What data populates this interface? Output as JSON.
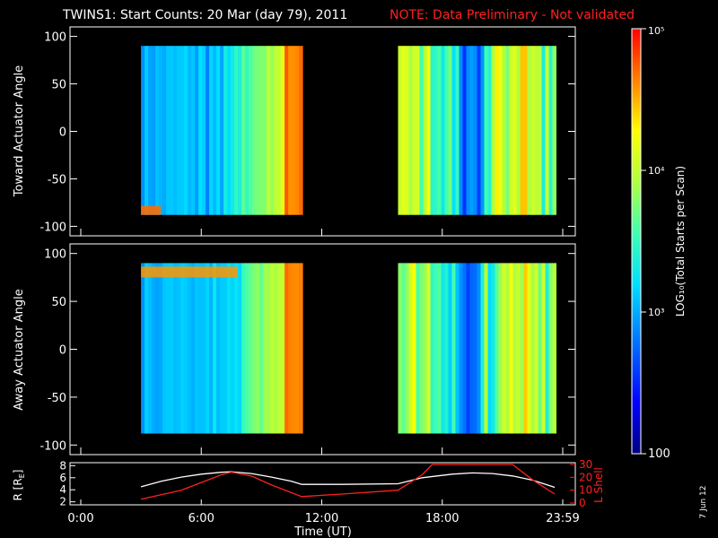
{
  "header": {
    "title": "TWINS1: Start Counts: 20 Mar (day  79), 2011",
    "note": "NOTE: Data Preliminary - Not validated",
    "note_color": "#ff2020"
  },
  "footer": {
    "date_stamp": "7 Jun 12"
  },
  "chart_data": [
    {
      "type": "heatmap",
      "ylabel": "Toward Actuator Angle",
      "ylim": [
        -110,
        110
      ],
      "yticks": [
        "100",
        "50",
        "0",
        "-50",
        "-100"
      ],
      "xlim": [
        0,
        24
      ],
      "x_data_ranges_hours": [
        [
          3.0,
          11.0
        ],
        [
          15.8,
          23.6
        ]
      ],
      "y_data_range_deg": [
        -88,
        90
      ],
      "color_scale": "log",
      "zlim": [
        100,
        100000
      ]
    },
    {
      "type": "heatmap",
      "ylabel": "Away Actuator Angle",
      "ylim": [
        -110,
        110
      ],
      "yticks": [
        "100",
        "50",
        "0",
        "-50",
        "-100"
      ],
      "xlim": [
        0,
        24
      ],
      "x_data_ranges_hours": [
        [
          3.0,
          11.0
        ],
        [
          15.8,
          23.6
        ]
      ],
      "y_data_range_deg": [
        -88,
        90
      ],
      "color_scale": "log",
      "zlim": [
        100,
        100000
      ]
    },
    {
      "type": "line",
      "ylabel_left": "R [R",
      "ylabel_left_sub": "E",
      "ylabel_left_end": "]",
      "ylabel_right": "L Shell",
      "ylim_left": [
        1.5,
        8.5
      ],
      "yticks_left": [
        "8",
        "6",
        "4",
        "2"
      ],
      "ylim_right": [
        0,
        30
      ],
      "yticks_right": [
        "30",
        "20",
        "10",
        "0"
      ],
      "xlabel": "Time (UT)",
      "xticks": [
        "0:00",
        "6:00",
        "12:00",
        "18:00",
        "23:59"
      ],
      "series": [
        {
          "color": "#ffffff",
          "x": [
            3.0,
            4.0,
            5.0,
            6.0,
            7.0,
            7.5,
            8.5,
            9.5,
            10.5,
            11.0,
            13.0,
            15.8,
            17.0,
            18.5,
            19.5,
            20.5,
            21.5,
            22.5,
            23.6
          ],
          "y": [
            4.5,
            5.4,
            6.1,
            6.6,
            6.9,
            7.0,
            6.7,
            6.1,
            5.4,
            4.9,
            4.9,
            5.0,
            6.0,
            6.6,
            6.8,
            6.7,
            6.3,
            5.6,
            4.4
          ]
        },
        {
          "color": "#ff2020",
          "x": [
            3.0,
            4.0,
            5.0,
            6.0,
            7.0,
            7.5,
            8.5,
            9.5,
            10.5,
            11.0,
            13.0,
            15.8,
            17.0,
            17.5,
            21.5,
            22.5,
            23.6
          ],
          "y": [
            3,
            6.5,
            10,
            16,
            22,
            24,
            21,
            14,
            8,
            5,
            7,
            10,
            22,
            30,
            30,
            18,
            7
          ]
        }
      ]
    }
  ],
  "colorbar": {
    "label": "LOG₁₀(Total Starts per Scan)",
    "ticks": [
      {
        "value": 100000,
        "label": "10⁵"
      },
      {
        "value": 10000,
        "label": "10⁴"
      },
      {
        "value": 1000,
        "label": "10³"
      },
      {
        "value": 100,
        "label": "100"
      }
    ]
  }
}
